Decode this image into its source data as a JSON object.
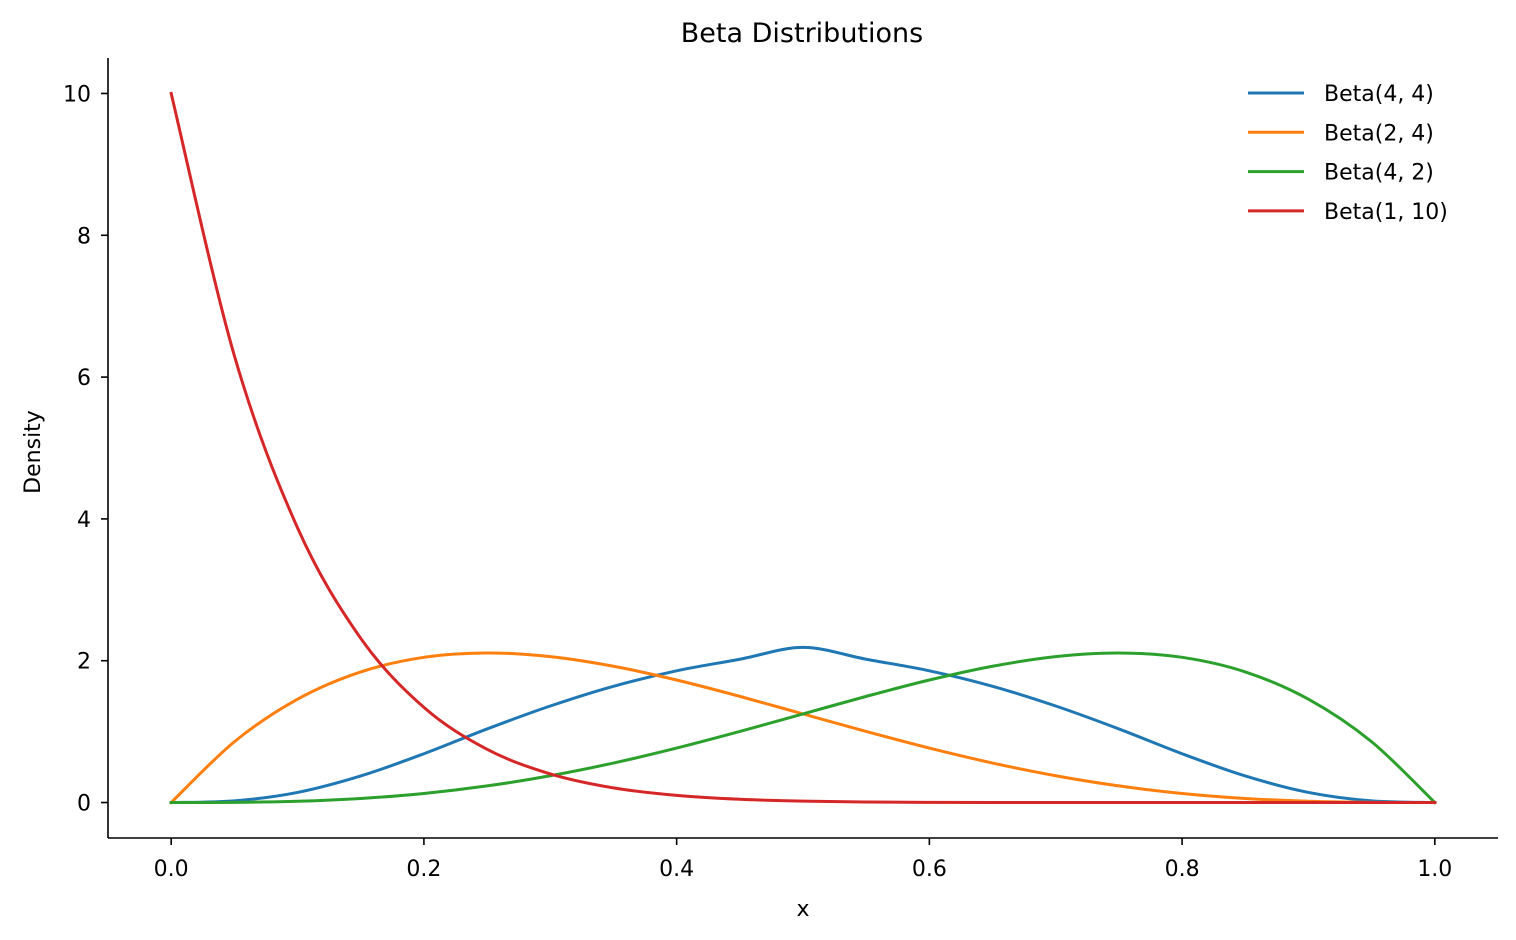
{
  "chart_data": {
    "type": "line",
    "title": "Beta Distributions",
    "xlabel": "x",
    "ylabel": "Density",
    "xlim": [
      -0.05,
      1.05
    ],
    "ylim": [
      -0.5,
      10.5
    ],
    "xticks": [
      0.0,
      0.2,
      0.4,
      0.6,
      0.8,
      1.0
    ],
    "xtick_labels": [
      "0.0",
      "0.2",
      "0.4",
      "0.6",
      "0.8",
      "1.0"
    ],
    "yticks": [
      0,
      2,
      4,
      6,
      8,
      10
    ],
    "ytick_labels": [
      "0",
      "2",
      "4",
      "6",
      "8",
      "10"
    ],
    "grid": false,
    "legend_position": "top-right",
    "x": [
      0.0,
      0.05,
      0.1,
      0.15,
      0.2,
      0.25,
      0.3,
      0.35,
      0.4,
      0.45,
      0.5,
      0.55,
      0.6,
      0.65,
      0.7,
      0.75,
      0.8,
      0.85,
      0.9,
      0.95,
      1.0
    ],
    "series": [
      {
        "name": "Beta(4, 4)",
        "color": "#1f77b4",
        "values": [
          0.0,
          0.0237,
          0.1429,
          0.375,
          0.6881,
          1.0382,
          1.3616,
          1.6397,
          1.8579,
          2.0211,
          2.1875,
          2.0211,
          1.8579,
          1.6397,
          1.3616,
          1.0382,
          0.6881,
          0.375,
          0.1429,
          0.0237,
          0.0
        ]
      },
      {
        "name": "Beta(2, 4)",
        "color": "#ff7f0e",
        "values": [
          0.0,
          0.8574,
          1.458,
          1.8424,
          2.048,
          2.1094,
          2.058,
          1.9223,
          1.728,
          1.4974,
          1.25,
          1.0024,
          0.768,
          0.5572,
          0.378,
          0.2344,
          0.128,
          0.0574,
          0.018,
          0.0024,
          0.0
        ]
      },
      {
        "name": "Beta(4, 2)",
        "color": "#2ca02c",
        "values": [
          0.0,
          0.0024,
          0.018,
          0.0574,
          0.128,
          0.2344,
          0.378,
          0.5572,
          0.768,
          1.0024,
          1.25,
          1.4974,
          1.728,
          1.9223,
          2.058,
          2.1094,
          2.048,
          1.8424,
          1.458,
          0.8574,
          0.0
        ]
      },
      {
        "name": "Beta(1, 10)",
        "color": "#d62728",
        "values": [
          10.0,
          6.302,
          3.874,
          2.316,
          1.342,
          0.751,
          0.404,
          0.207,
          0.101,
          0.046,
          0.0195,
          0.0076,
          0.0026,
          0.0008,
          0.0002,
          4e-05,
          0.0,
          0.0,
          0.0,
          0.0,
          0.0
        ]
      }
    ]
  }
}
